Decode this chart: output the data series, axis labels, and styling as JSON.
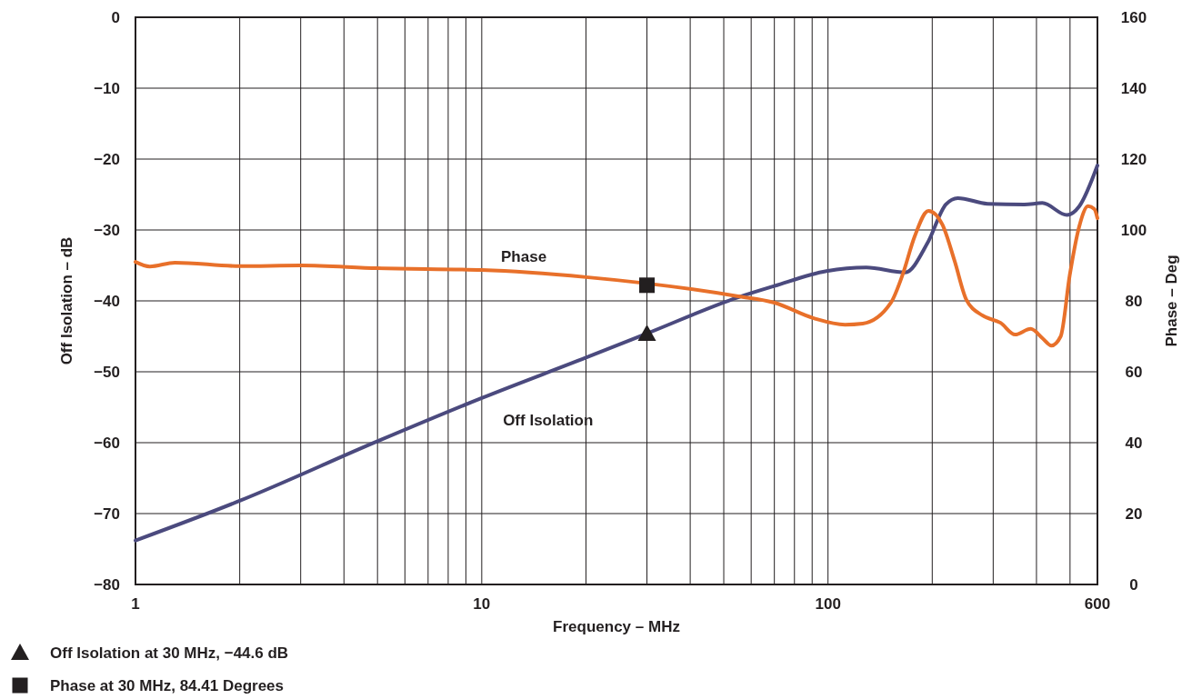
{
  "chart_data": {
    "type": "line",
    "xlabel": "Frequency – MHz",
    "ylabel": "Off Isolation – dB",
    "y2label": "Phase – Deg",
    "log": "x",
    "grid": true,
    "legend": "bottom left",
    "line_style": "solid",
    "xlim": [
      1,
      600
    ],
    "ylim": [
      -80,
      0
    ],
    "y2lim": [
      0,
      160
    ],
    "xticks": [
      1,
      {
        "value": 2,
        "label": null
      },
      {
        "value": 3,
        "label": null
      },
      {
        "value": 4,
        "label": null
      },
      {
        "value": 5,
        "label": null
      },
      {
        "value": 6,
        "label": null
      },
      {
        "value": 7,
        "label": null
      },
      {
        "value": 8,
        "label": null
      },
      {
        "value": 9,
        "label": null
      },
      10,
      {
        "value": 20,
        "label": null
      },
      {
        "value": 30,
        "label": null
      },
      {
        "value": 40,
        "label": null
      },
      {
        "value": 50,
        "label": null
      },
      {
        "value": 60,
        "label": null
      },
      {
        "value": 70,
        "label": null
      },
      {
        "value": 80,
        "label": null
      },
      {
        "value": 90,
        "label": null
      },
      100,
      {
        "value": 200,
        "label": null
      },
      {
        "value": 300,
        "label": null
      },
      {
        "value": 400,
        "label": null
      },
      {
        "value": 500,
        "label": null
      },
      600
    ],
    "yticks": [
      {
        "value": -80,
        "label": "−80"
      },
      {
        "value": -70,
        "label": "−70"
      },
      {
        "value": -60,
        "label": "−60"
      },
      {
        "value": -50,
        "label": "−50"
      },
      {
        "value": -40,
        "label": "−40"
      },
      {
        "value": -30,
        "label": "−30"
      },
      {
        "value": -20,
        "label": "−20"
      },
      {
        "value": -10,
        "label": "−10"
      },
      0
    ],
    "y2ticks": [
      0,
      20,
      40,
      60,
      80,
      100,
      120,
      140,
      160
    ],
    "series": [
      {
        "name": "Off Isolation",
        "color": "#4b4a7e",
        "x": [
          1,
          2,
          5,
          10,
          20,
          30,
          55,
          70,
          99,
          129,
          167,
          194,
          219,
          237,
          289,
          369,
          416,
          490,
          531,
          600
        ],
        "values": [
          -73.8,
          -68.2,
          -59.8,
          -53.7,
          -48,
          -44.6,
          -39.5,
          -37.9,
          -35.8,
          -35.3,
          -36,
          -31.8,
          -26.4,
          -25.5,
          -26.3,
          -26.4,
          -26.2,
          -27.9,
          -26.7,
          -20.9
        ]
      },
      {
        "name": "Phase",
        "axis": "y2",
        "color": "#e8702a",
        "x": [
          1,
          1.1,
          1.3,
          2,
          3,
          5,
          10,
          20,
          55,
          70,
          91,
          112,
          126,
          152,
          164,
          178,
          195,
          214,
          232,
          251,
          279,
          315,
          347,
          385,
          416,
          442,
          470,
          499,
          531,
          564,
          588,
          600
        ],
        "values": [
          91,
          89.7,
          90.8,
          89.8,
          90,
          89.2,
          88.7,
          86.7,
          81.3,
          79.5,
          75.1,
          73.3,
          73.6,
          79.5,
          87.2,
          98.2,
          105.4,
          101.5,
          91.3,
          80.3,
          75.9,
          73.8,
          70.5,
          72.1,
          69.5,
          67.4,
          70,
          87.2,
          100.8,
          106.7,
          105.9,
          103.3
        ]
      },
      {
        "name": "Off Isolation at 30 MHz, −44.6 dB",
        "type": "scatter",
        "marker": "triangle",
        "color": "#231f20",
        "x": [
          30
        ],
        "values": [
          -44.6
        ]
      },
      {
        "name": "Phase at 30 MHz, 84.41 Degrees",
        "type": "scatter",
        "marker": "square",
        "axis": "y2",
        "color": "#231f20",
        "x": [
          30
        ],
        "values": [
          84.41
        ]
      }
    ]
  }
}
